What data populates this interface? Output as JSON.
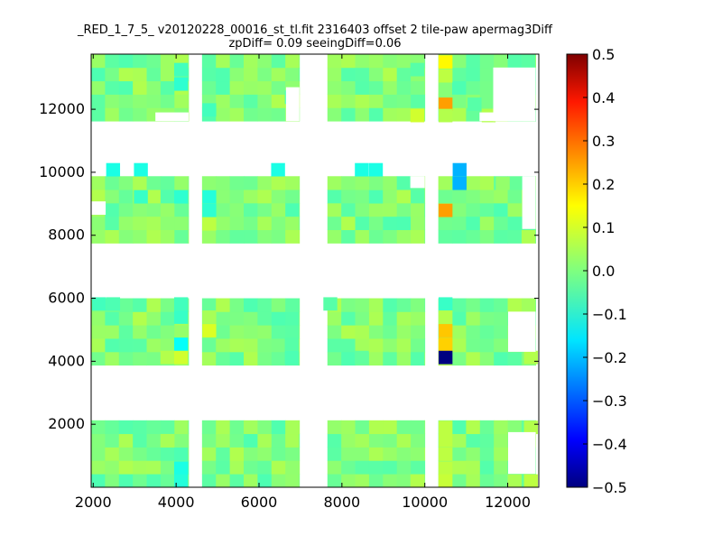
{
  "chart_data": {
    "type": "heatmap",
    "title": "_RED_1_7_5_ v20120228_00016_st_tl.fit 2316403 offset 2 tile-paw apermag3Diff",
    "subtitle": "zpDiff= 0.09 seeingDiff=0.06",
    "xlabel": "",
    "ylabel": "",
    "xlim": [
      1950,
      12750
    ],
    "ylim": [
      0,
      13750
    ],
    "x_ticks": [
      2000,
      4000,
      6000,
      8000,
      10000,
      12000
    ],
    "y_ticks": [
      2000,
      4000,
      6000,
      8000,
      10000,
      12000
    ],
    "cell_size": [
      335,
      425
    ],
    "colorscale": "jet",
    "colorbar": {
      "range": [
        -0.5,
        0.5
      ],
      "ticks": [
        0.5,
        0.4,
        0.3,
        0.2,
        0.1,
        0.0,
        -0.1,
        -0.2,
        -0.3,
        -0.4,
        -0.5
      ],
      "tick_labels": [
        "0.5",
        "0.4",
        "0.3",
        "0.2",
        "0.1",
        "0.0",
        "−0.1",
        "−0.2",
        "−0.3",
        "−0.4",
        "−0.5"
      ]
    },
    "column_groups": [
      {
        "x_start": 1950,
        "x_end": 4300
      },
      {
        "x_start": 4625,
        "x_end": 6975
      },
      {
        "x_start": 7650,
        "x_end": 10000
      },
      {
        "x_start": 10325,
        "x_end": 12675
      }
    ],
    "row_bands": [
      {
        "y_start": 0,
        "y_end": 2125
      },
      {
        "y_start": 3875,
        "y_end": 6000
      },
      {
        "y_start": 7750,
        "y_end": 9875
      },
      {
        "y_start": 11625,
        "y_end": 13750
      }
    ],
    "base_value": 0.0,
    "cells": [
      {
        "x": 4120,
        "y": 12800,
        "value": -0.08
      },
      {
        "x": 4120,
        "y": 13260,
        "value": -0.06
      },
      {
        "x": 6790,
        "y": 12380,
        "value": -0.05
      },
      {
        "x": 4800,
        "y": 11980,
        "value": -0.06
      },
      {
        "x": 9820,
        "y": 11800,
        "value": 0.08
      },
      {
        "x": 9820,
        "y": 13260,
        "value": -0.04
      },
      {
        "x": 10500,
        "y": 13500,
        "value": 0.13
      },
      {
        "x": 10500,
        "y": 13060,
        "value": 0.06
      },
      {
        "x": 10500,
        "y": 12160,
        "value": 0.22
      },
      {
        "x": 10500,
        "y": 11800,
        "value": 0.05
      },
      {
        "x": 11200,
        "y": 12160,
        "value": -0.04
      },
      {
        "x": 11540,
        "y": 11800,
        "value": 0.05
      },
      {
        "x": 2480,
        "y": 10080,
        "value": -0.1
      },
      {
        "x": 3150,
        "y": 10080,
        "value": -0.1
      },
      {
        "x": 6460,
        "y": 10080,
        "value": -0.1
      },
      {
        "x": 8480,
        "y": 10080,
        "value": -0.1
      },
      {
        "x": 8820,
        "y": 10080,
        "value": -0.1
      },
      {
        "x": 10840,
        "y": 10080,
        "value": -0.2
      },
      {
        "x": 10840,
        "y": 9650,
        "value": -0.2
      },
      {
        "x": 9820,
        "y": 9650,
        "value": -0.03
      },
      {
        "x": 11880,
        "y": 9650,
        "value": 0.02
      },
      {
        "x": 3150,
        "y": 9220,
        "value": -0.07
      },
      {
        "x": 4120,
        "y": 9220,
        "value": -0.08
      },
      {
        "x": 4800,
        "y": 9220,
        "value": -0.09
      },
      {
        "x": 8820,
        "y": 9220,
        "value": -0.05
      },
      {
        "x": 4800,
        "y": 8790,
        "value": -0.08
      },
      {
        "x": 10500,
        "y": 8790,
        "value": 0.22
      },
      {
        "x": 4800,
        "y": 8360,
        "value": 0.06
      },
      {
        "x": 2140,
        "y": 5820,
        "value": -0.06
      },
      {
        "x": 2480,
        "y": 5820,
        "value": -0.05
      },
      {
        "x": 4120,
        "y": 5820,
        "value": -0.06
      },
      {
        "x": 7720,
        "y": 5820,
        "value": -0.04
      },
      {
        "x": 10500,
        "y": 5820,
        "value": -0.07
      },
      {
        "x": 4120,
        "y": 5400,
        "value": -0.07
      },
      {
        "x": 4800,
        "y": 5400,
        "value": 0.04
      },
      {
        "x": 10500,
        "y": 5400,
        "value": 0.05
      },
      {
        "x": 4800,
        "y": 4970,
        "value": 0.09
      },
      {
        "x": 4120,
        "y": 4540,
        "value": -0.12
      },
      {
        "x": 6790,
        "y": 4540,
        "value": -0.04
      },
      {
        "x": 10500,
        "y": 4970,
        "value": 0.18
      },
      {
        "x": 10500,
        "y": 4540,
        "value": 0.17
      },
      {
        "x": 3790,
        "y": 4120,
        "value": 0.05
      },
      {
        "x": 4120,
        "y": 4120,
        "value": 0.08
      },
      {
        "x": 6790,
        "y": 4120,
        "value": -0.05
      },
      {
        "x": 10500,
        "y": 4120,
        "value": -0.5
      },
      {
        "x": 12560,
        "y": 4120,
        "value": 0.05
      },
      {
        "x": 8480,
        "y": 4120,
        "value": -0.03
      },
      {
        "x": 10500,
        "y": 1900,
        "value": 0.06
      },
      {
        "x": 10500,
        "y": 1480,
        "value": 0.06
      },
      {
        "x": 10500,
        "y": 1050,
        "value": 0.06
      },
      {
        "x": 10500,
        "y": 600,
        "value": 0.06
      },
      {
        "x": 10500,
        "y": 200,
        "value": 0.07
      },
      {
        "x": 4120,
        "y": 1050,
        "value": -0.05
      },
      {
        "x": 4120,
        "y": 600,
        "value": -0.1
      },
      {
        "x": 4120,
        "y": 200,
        "value": -0.09
      },
      {
        "x": 3790,
        "y": 1480,
        "value": 0.04
      },
      {
        "x": 12560,
        "y": 1900,
        "value": 0.05
      },
      {
        "x": 12560,
        "y": 200,
        "value": 0.06
      },
      {
        "x": 9820,
        "y": 200,
        "value": 0.05
      }
    ],
    "empty_regions": [
      {
        "x_start": 1950,
        "x_end": 2300,
        "y_start": 8650,
        "y_end": 9075
      },
      {
        "x_start": 9650,
        "x_end": 10000,
        "y_start": 9500,
        "y_end": 9875
      },
      {
        "x_start": 12350,
        "x_end": 12675,
        "y_start": 8200,
        "y_end": 9875
      },
      {
        "x_start": 11650,
        "x_end": 12675,
        "y_start": 11625,
        "y_end": 13325
      },
      {
        "x_start": 11320,
        "x_end": 12675,
        "y_start": 11625,
        "y_end": 11900
      },
      {
        "x_start": 6650,
        "x_end": 6975,
        "y_start": 11625,
        "y_end": 12700
      },
      {
        "x_start": 12010,
        "x_end": 12675,
        "y_start": 4300,
        "y_end": 5575
      },
      {
        "x_start": 12010,
        "x_end": 12675,
        "y_start": 425,
        "y_end": 1750
      },
      {
        "x_start": 3500,
        "x_end": 4300,
        "y_start": 11625,
        "y_end": 11900
      }
    ]
  }
}
